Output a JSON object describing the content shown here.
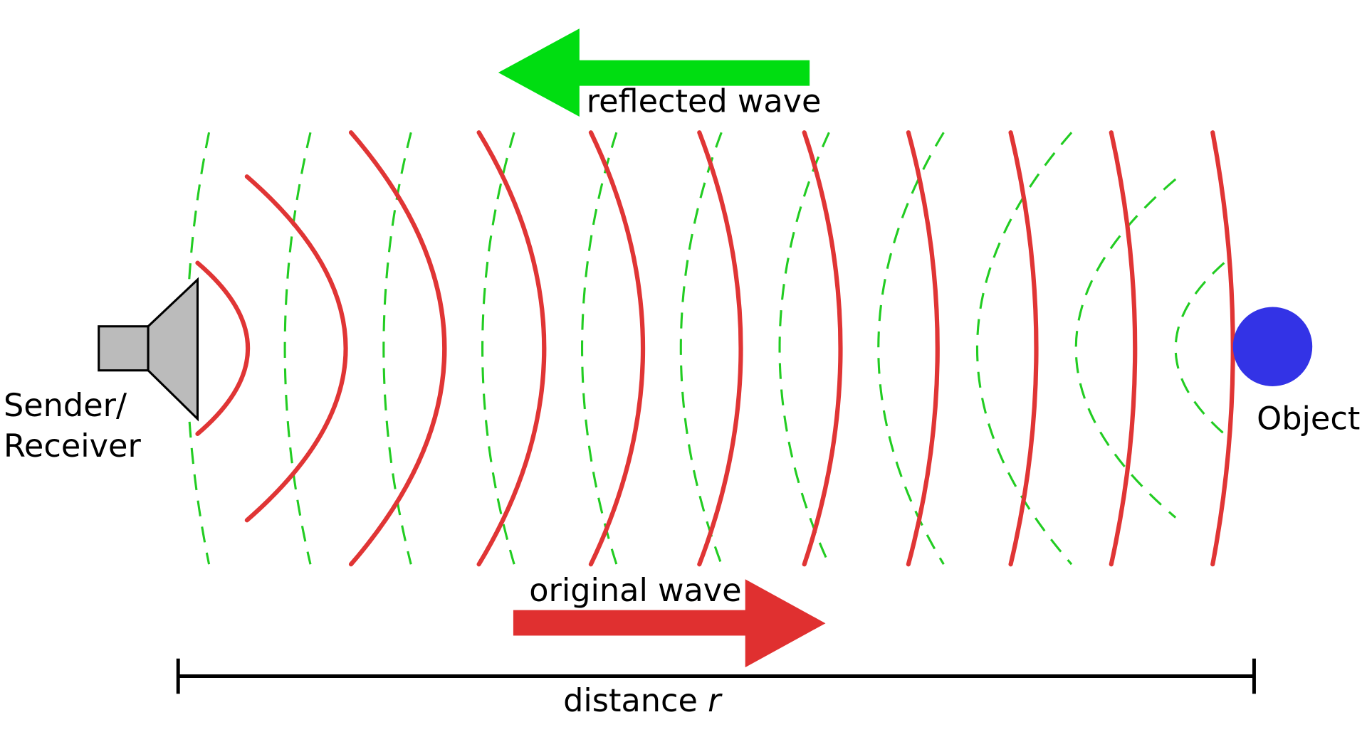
{
  "labels": {
    "reflected": "reflected wave",
    "original": "original wave",
    "sender": [
      "Sender/",
      "Receiver"
    ],
    "object": "Object",
    "distance": "distance",
    "distance_var": "r"
  }
}
